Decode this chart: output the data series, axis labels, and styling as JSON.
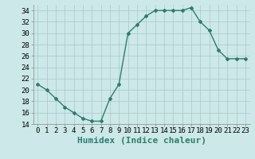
{
  "x": [
    0,
    1,
    2,
    3,
    4,
    5,
    6,
    7,
    8,
    9,
    10,
    11,
    12,
    13,
    14,
    15,
    16,
    17,
    18,
    19,
    20,
    21,
    22,
    23
  ],
  "y": [
    21,
    20,
    18.5,
    17,
    16,
    15,
    14.5,
    14.5,
    18.5,
    21,
    30,
    31.5,
    33,
    34,
    34,
    34,
    34,
    34.5,
    32,
    30.5,
    27,
    25.5,
    25.5,
    25.5
  ],
  "xlabel": "Humidex (Indice chaleur)",
  "ylim": [
    14,
    35
  ],
  "xlim": [
    -0.5,
    23.5
  ],
  "yticks": [
    14,
    16,
    18,
    20,
    22,
    24,
    26,
    28,
    30,
    32,
    34
  ],
  "xticks": [
    0,
    1,
    2,
    3,
    4,
    5,
    6,
    7,
    8,
    9,
    10,
    11,
    12,
    13,
    14,
    15,
    16,
    17,
    18,
    19,
    20,
    21,
    22,
    23
  ],
  "line_color": "#2e7d6e",
  "marker": "D",
  "marker_size": 2.0,
  "bg_color": "#cce8e8",
  "grid_color_major": "#aac8c8",
  "grid_color_minor": "#bbdddd",
  "xlabel_fontsize": 8,
  "tick_fontsize": 6.5,
  "line_width": 1.0
}
